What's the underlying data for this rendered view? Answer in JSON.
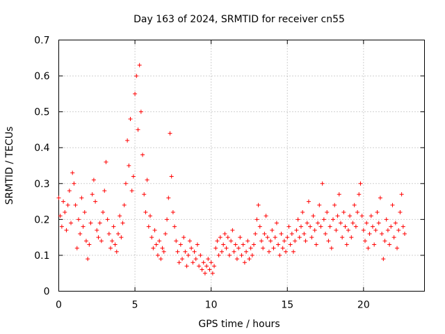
{
  "chart_data": {
    "type": "scatter",
    "title": "Day 163 of 2024, SRMTID for receiver cn55",
    "xlabel": "GPS time / hours",
    "ylabel": "SRMTID / TECUs",
    "xlim": [
      0,
      24
    ],
    "ylim": [
      0,
      0.7
    ],
    "xticks": [
      0,
      5,
      10,
      15,
      20
    ],
    "xtick_labels": [
      "0",
      "5",
      "10",
      "15",
      "20"
    ],
    "yticks": [
      0,
      0.1,
      0.2,
      0.3,
      0.4,
      0.5,
      0.6,
      0.7
    ],
    "ytick_labels": [
      "0",
      "0.1",
      "0.2",
      "0.3",
      "0.4",
      "0.5",
      "0.6",
      "0.7"
    ],
    "grid": true,
    "marker": "+",
    "marker_color": "#ff0000",
    "series": [
      {
        "name": "SRMTID",
        "points": [
          [
            0.0,
            0.26
          ],
          [
            0.1,
            0.21
          ],
          [
            0.2,
            0.18
          ],
          [
            0.3,
            0.25
          ],
          [
            0.4,
            0.22
          ],
          [
            0.5,
            0.17
          ],
          [
            0.6,
            0.24
          ],
          [
            0.7,
            0.28
          ],
          [
            0.8,
            0.19
          ],
          [
            0.9,
            0.33
          ],
          [
            1.0,
            0.3
          ],
          [
            1.1,
            0.24
          ],
          [
            1.2,
            0.12
          ],
          [
            1.3,
            0.2
          ],
          [
            1.4,
            0.16
          ],
          [
            1.5,
            0.26
          ],
          [
            1.6,
            0.18
          ],
          [
            1.7,
            0.22
          ],
          [
            1.8,
            0.14
          ],
          [
            1.9,
            0.09
          ],
          [
            2.0,
            0.13
          ],
          [
            2.1,
            0.19
          ],
          [
            2.2,
            0.27
          ],
          [
            2.3,
            0.31
          ],
          [
            2.4,
            0.25
          ],
          [
            2.5,
            0.17
          ],
          [
            2.6,
            0.15
          ],
          [
            2.7,
            0.19
          ],
          [
            2.8,
            0.14
          ],
          [
            2.9,
            0.22
          ],
          [
            3.0,
            0.28
          ],
          [
            3.1,
            0.36
          ],
          [
            3.2,
            0.2
          ],
          [
            3.3,
            0.16
          ],
          [
            3.4,
            0.12
          ],
          [
            3.5,
            0.14
          ],
          [
            3.6,
            0.18
          ],
          [
            3.7,
            0.13
          ],
          [
            3.8,
            0.11
          ],
          [
            3.9,
            0.16
          ],
          [
            4.0,
            0.21
          ],
          [
            4.1,
            0.15
          ],
          [
            4.2,
            0.19
          ],
          [
            4.3,
            0.24
          ],
          [
            4.4,
            0.3
          ],
          [
            4.5,
            0.42
          ],
          [
            4.6,
            0.35
          ],
          [
            4.7,
            0.48
          ],
          [
            4.8,
            0.28
          ],
          [
            4.9,
            0.32
          ],
          [
            5.0,
            0.55
          ],
          [
            5.1,
            0.6
          ],
          [
            5.2,
            0.45
          ],
          [
            5.3,
            0.63
          ],
          [
            5.4,
            0.5
          ],
          [
            5.5,
            0.38
          ],
          [
            5.6,
            0.27
          ],
          [
            5.7,
            0.22
          ],
          [
            5.8,
            0.31
          ],
          [
            5.9,
            0.18
          ],
          [
            6.0,
            0.21
          ],
          [
            6.1,
            0.15
          ],
          [
            6.2,
            0.12
          ],
          [
            6.3,
            0.17
          ],
          [
            6.4,
            0.13
          ],
          [
            6.5,
            0.1
          ],
          [
            6.6,
            0.14
          ],
          [
            6.7,
            0.09
          ],
          [
            6.8,
            0.12
          ],
          [
            6.9,
            0.11
          ],
          [
            7.0,
            0.16
          ],
          [
            7.1,
            0.2
          ],
          [
            7.2,
            0.26
          ],
          [
            7.3,
            0.44
          ],
          [
            7.4,
            0.32
          ],
          [
            7.5,
            0.22
          ],
          [
            7.6,
            0.18
          ],
          [
            7.7,
            0.14
          ],
          [
            7.8,
            0.11
          ],
          [
            7.9,
            0.08
          ],
          [
            8.0,
            0.13
          ],
          [
            8.1,
            0.09
          ],
          [
            8.2,
            0.15
          ],
          [
            8.3,
            0.11
          ],
          [
            8.4,
            0.07
          ],
          [
            8.5,
            0.1
          ],
          [
            8.6,
            0.14
          ],
          [
            8.7,
            0.12
          ],
          [
            8.8,
            0.08
          ],
          [
            8.9,
            0.11
          ],
          [
            9.0,
            0.09
          ],
          [
            9.1,
            0.13
          ],
          [
            9.2,
            0.07
          ],
          [
            9.3,
            0.1
          ],
          [
            9.4,
            0.06
          ],
          [
            9.5,
            0.08
          ],
          [
            9.6,
            0.05
          ],
          [
            9.7,
            0.07
          ],
          [
            9.8,
            0.09
          ],
          [
            9.9,
            0.06
          ],
          [
            10.0,
            0.08
          ],
          [
            10.1,
            0.05
          ],
          [
            10.2,
            0.07
          ],
          [
            10.3,
            0.12
          ],
          [
            10.4,
            0.14
          ],
          [
            10.5,
            0.1
          ],
          [
            10.6,
            0.15
          ],
          [
            10.7,
            0.11
          ],
          [
            10.8,
            0.13
          ],
          [
            10.9,
            0.16
          ],
          [
            11.0,
            0.12
          ],
          [
            11.1,
            0.15
          ],
          [
            11.2,
            0.1
          ],
          [
            11.3,
            0.14
          ],
          [
            11.4,
            0.17
          ],
          [
            11.5,
            0.11
          ],
          [
            11.6,
            0.13
          ],
          [
            11.7,
            0.09
          ],
          [
            11.8,
            0.12
          ],
          [
            11.9,
            0.15
          ],
          [
            12.0,
            0.1
          ],
          [
            12.1,
            0.13
          ],
          [
            12.2,
            0.08
          ],
          [
            12.3,
            0.11
          ],
          [
            12.4,
            0.14
          ],
          [
            12.5,
            0.09
          ],
          [
            12.6,
            0.12
          ],
          [
            12.7,
            0.1
          ],
          [
            12.8,
            0.13
          ],
          [
            12.9,
            0.16
          ],
          [
            13.0,
            0.2
          ],
          [
            13.1,
            0.24
          ],
          [
            13.2,
            0.18
          ],
          [
            13.3,
            0.14
          ],
          [
            13.4,
            0.12
          ],
          [
            13.5,
            0.16
          ],
          [
            13.6,
            0.21
          ],
          [
            13.7,
            0.15
          ],
          [
            13.8,
            0.11
          ],
          [
            13.9,
            0.14
          ],
          [
            14.0,
            0.17
          ],
          [
            14.1,
            0.12
          ],
          [
            14.2,
            0.15
          ],
          [
            14.3,
            0.19
          ],
          [
            14.4,
            0.13
          ],
          [
            14.5,
            0.1
          ],
          [
            14.6,
            0.16
          ],
          [
            14.7,
            0.12
          ],
          [
            14.8,
            0.14
          ],
          [
            14.9,
            0.11
          ],
          [
            15.0,
            0.15
          ],
          [
            15.1,
            0.18
          ],
          [
            15.2,
            0.13
          ],
          [
            15.3,
            0.16
          ],
          [
            15.4,
            0.11
          ],
          [
            15.5,
            0.14
          ],
          [
            15.6,
            0.17
          ],
          [
            15.7,
            0.2
          ],
          [
            15.8,
            0.15
          ],
          [
            15.9,
            0.18
          ],
          [
            16.0,
            0.22
          ],
          [
            16.1,
            0.16
          ],
          [
            16.2,
            0.14
          ],
          [
            16.3,
            0.19
          ],
          [
            16.4,
            0.25
          ],
          [
            16.5,
            0.18
          ],
          [
            16.6,
            0.15
          ],
          [
            16.7,
            0.21
          ],
          [
            16.8,
            0.17
          ],
          [
            16.9,
            0.13
          ],
          [
            17.0,
            0.19
          ],
          [
            17.1,
            0.24
          ],
          [
            17.2,
            0.18
          ],
          [
            17.3,
            0.3
          ],
          [
            17.4,
            0.2
          ],
          [
            17.5,
            0.16
          ],
          [
            17.6,
            0.22
          ],
          [
            17.7,
            0.14
          ],
          [
            17.8,
            0.18
          ],
          [
            17.9,
            0.12
          ],
          [
            18.0,
            0.2
          ],
          [
            18.1,
            0.24
          ],
          [
            18.2,
            0.17
          ],
          [
            18.3,
            0.21
          ],
          [
            18.4,
            0.27
          ],
          [
            18.5,
            0.19
          ],
          [
            18.6,
            0.15
          ],
          [
            18.7,
            0.22
          ],
          [
            18.8,
            0.18
          ],
          [
            18.9,
            0.13
          ],
          [
            19.0,
            0.17
          ],
          [
            19.1,
            0.21
          ],
          [
            19.2,
            0.15
          ],
          [
            19.3,
            0.19
          ],
          [
            19.4,
            0.24
          ],
          [
            19.5,
            0.18
          ],
          [
            19.6,
            0.22
          ],
          [
            19.7,
            0.27
          ],
          [
            19.8,
            0.3
          ],
          [
            19.9,
            0.21
          ],
          [
            20.0,
            0.17
          ],
          [
            20.1,
            0.14
          ],
          [
            20.2,
            0.19
          ],
          [
            20.3,
            0.12
          ],
          [
            20.4,
            0.16
          ],
          [
            20.5,
            0.21
          ],
          [
            20.6,
            0.18
          ],
          [
            20.7,
            0.13
          ],
          [
            20.8,
            0.17
          ],
          [
            20.9,
            0.22
          ],
          [
            21.0,
            0.19
          ],
          [
            21.1,
            0.26
          ],
          [
            21.2,
            0.16
          ],
          [
            21.3,
            0.09
          ],
          [
            21.4,
            0.14
          ],
          [
            21.5,
            0.2
          ],
          [
            21.6,
            0.17
          ],
          [
            21.7,
            0.13
          ],
          [
            21.8,
            0.18
          ],
          [
            21.9,
            0.24
          ],
          [
            22.0,
            0.15
          ],
          [
            22.1,
            0.19
          ],
          [
            22.2,
            0.12
          ],
          [
            22.3,
            0.17
          ],
          [
            22.4,
            0.22
          ],
          [
            22.5,
            0.27
          ],
          [
            22.6,
            0.18
          ],
          [
            22.7,
            0.16
          ]
        ]
      }
    ]
  }
}
